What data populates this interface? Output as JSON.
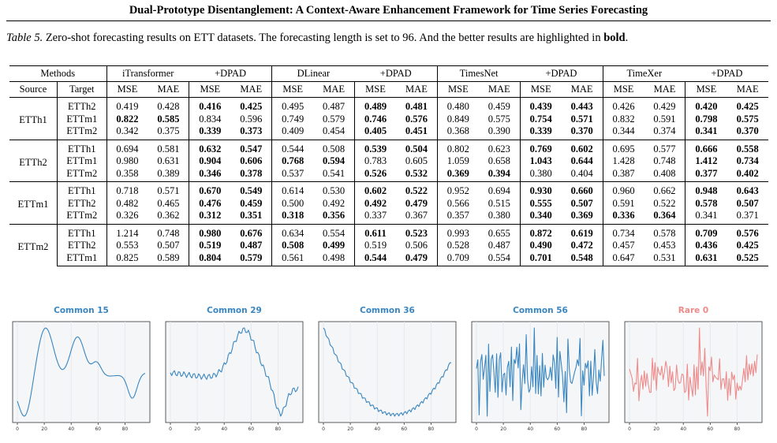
{
  "header": {
    "title": "Dual-Prototype Disentanglement: A Context-Aware Enhancement Framework for Time Series Forecasting"
  },
  "caption": {
    "label": "Table 5.",
    "text": " Zero-shot forecasting results on ETT datasets. The forecasting length is set to 96. And the better results are highlighted in ",
    "bold_word": "bold",
    "end": "."
  },
  "table": {
    "methods_label": "Methods",
    "models": [
      "iTransformer",
      "+DPAD",
      "DLinear",
      "+DPAD",
      "TimesNet",
      "+DPAD",
      "TimeXer",
      "+DPAD"
    ],
    "source_label": "Source",
    "target_label": "Target",
    "metrics": [
      "MSE",
      "MAE"
    ],
    "groups": [
      {
        "source": "ETTh1",
        "rows": [
          {
            "target": "ETTh2",
            "values": [
              "0.419",
              "0.428",
              "0.416",
              "0.425",
              "0.495",
              "0.487",
              "0.489",
              "0.481",
              "0.480",
              "0.459",
              "0.439",
              "0.443",
              "0.426",
              "0.429",
              "0.420",
              "0.425"
            ],
            "bold": [
              2,
              3,
              6,
              7,
              10,
              11,
              14,
              15
            ]
          },
          {
            "target": "ETTm1",
            "values": [
              "0.822",
              "0.585",
              "0.834",
              "0.596",
              "0.749",
              "0.579",
              "0.746",
              "0.576",
              "0.849",
              "0.575",
              "0.754",
              "0.571",
              "0.832",
              "0.591",
              "0.798",
              "0.575"
            ],
            "bold": [
              0,
              1,
              6,
              7,
              10,
              11,
              14,
              15
            ]
          },
          {
            "target": "ETTm2",
            "values": [
              "0.342",
              "0.375",
              "0.339",
              "0.373",
              "0.409",
              "0.454",
              "0.405",
              "0.451",
              "0.368",
              "0.390",
              "0.339",
              "0.370",
              "0.344",
              "0.374",
              "0.341",
              "0.370"
            ],
            "bold": [
              2,
              3,
              6,
              7,
              10,
              11,
              14,
              15
            ]
          }
        ]
      },
      {
        "source": "ETTh2",
        "rows": [
          {
            "target": "ETTh1",
            "values": [
              "0.694",
              "0.581",
              "0.632",
              "0.547",
              "0.544",
              "0.508",
              "0.539",
              "0.504",
              "0.802",
              "0.623",
              "0.769",
              "0.602",
              "0.695",
              "0.577",
              "0.666",
              "0.558"
            ],
            "bold": [
              2,
              3,
              6,
              7,
              10,
              11,
              14,
              15
            ]
          },
          {
            "target": "ETTm1",
            "values": [
              "0.980",
              "0.631",
              "0.904",
              "0.606",
              "0.768",
              "0.594",
              "0.783",
              "0.605",
              "1.059",
              "0.658",
              "1.043",
              "0.644",
              "1.428",
              "0.748",
              "1.412",
              "0.734"
            ],
            "bold": [
              2,
              3,
              4,
              5,
              10,
              11,
              14,
              15
            ]
          },
          {
            "target": "ETTm2",
            "values": [
              "0.358",
              "0.389",
              "0.346",
              "0.378",
              "0.537",
              "0.541",
              "0.526",
              "0.532",
              "0.369",
              "0.394",
              "0.380",
              "0.404",
              "0.387",
              "0.408",
              "0.377",
              "0.402"
            ],
            "bold": [
              2,
              3,
              6,
              7,
              8,
              9,
              14,
              15
            ]
          }
        ]
      },
      {
        "source": "ETTm1",
        "rows": [
          {
            "target": "ETTh1",
            "values": [
              "0.718",
              "0.571",
              "0.670",
              "0.549",
              "0.614",
              "0.530",
              "0.602",
              "0.522",
              "0.952",
              "0.694",
              "0.930",
              "0.660",
              "0.960",
              "0.662",
              "0.948",
              "0.643"
            ],
            "bold": [
              2,
              3,
              6,
              7,
              10,
              11,
              14,
              15
            ]
          },
          {
            "target": "ETTh2",
            "values": [
              "0.482",
              "0.465",
              "0.476",
              "0.459",
              "0.500",
              "0.492",
              "0.492",
              "0.479",
              "0.566",
              "0.515",
              "0.555",
              "0.507",
              "0.591",
              "0.522",
              "0.578",
              "0.507"
            ],
            "bold": [
              2,
              3,
              6,
              7,
              10,
              11,
              14,
              15
            ]
          },
          {
            "target": "ETTm2",
            "values": [
              "0.326",
              "0.362",
              "0.312",
              "0.351",
              "0.318",
              "0.356",
              "0.337",
              "0.367",
              "0.357",
              "0.380",
              "0.340",
              "0.369",
              "0.336",
              "0.364",
              "0.341",
              "0.371"
            ],
            "bold": [
              2,
              3,
              4,
              5,
              10,
              11,
              12,
              13
            ]
          }
        ]
      },
      {
        "source": "ETTm2",
        "rows": [
          {
            "target": "ETTh1",
            "values": [
              "1.214",
              "0.748",
              "0.980",
              "0.676",
              "0.634",
              "0.554",
              "0.611",
              "0.523",
              "0.993",
              "0.655",
              "0.872",
              "0.619",
              "0.734",
              "0.578",
              "0.709",
              "0.576"
            ],
            "bold": [
              2,
              3,
              6,
              7,
              10,
              11,
              14,
              15
            ]
          },
          {
            "target": "ETTh2",
            "values": [
              "0.553",
              "0.507",
              "0.519",
              "0.487",
              "0.508",
              "0.499",
              "0.519",
              "0.506",
              "0.528",
              "0.487",
              "0.490",
              "0.472",
              "0.457",
              "0.453",
              "0.436",
              "0.425"
            ],
            "bold": [
              2,
              3,
              4,
              5,
              10,
              11,
              14,
              15
            ]
          },
          {
            "target": "ETTm1",
            "values": [
              "0.825",
              "0.589",
              "0.804",
              "0.579",
              "0.561",
              "0.498",
              "0.544",
              "0.479",
              "0.709",
              "0.554",
              "0.701",
              "0.548",
              "0.647",
              "0.531",
              "0.631",
              "0.525"
            ],
            "bold": [
              2,
              3,
              6,
              7,
              10,
              11,
              14,
              15
            ]
          }
        ]
      }
    ]
  },
  "figures": {
    "colors": {
      "common": "#3a86c0",
      "rare": "#ef8a8a"
    },
    "panels": [
      {
        "title": "Common 15",
        "kind": "common"
      },
      {
        "title": "Common 29",
        "kind": "common"
      },
      {
        "title": "Common 36",
        "kind": "common"
      },
      {
        "title": "Common 56",
        "kind": "common"
      },
      {
        "title": "Rare 0",
        "kind": "rare"
      }
    ],
    "x_ticks": [
      "0",
      "20",
      "40",
      "60",
      "80"
    ]
  }
}
